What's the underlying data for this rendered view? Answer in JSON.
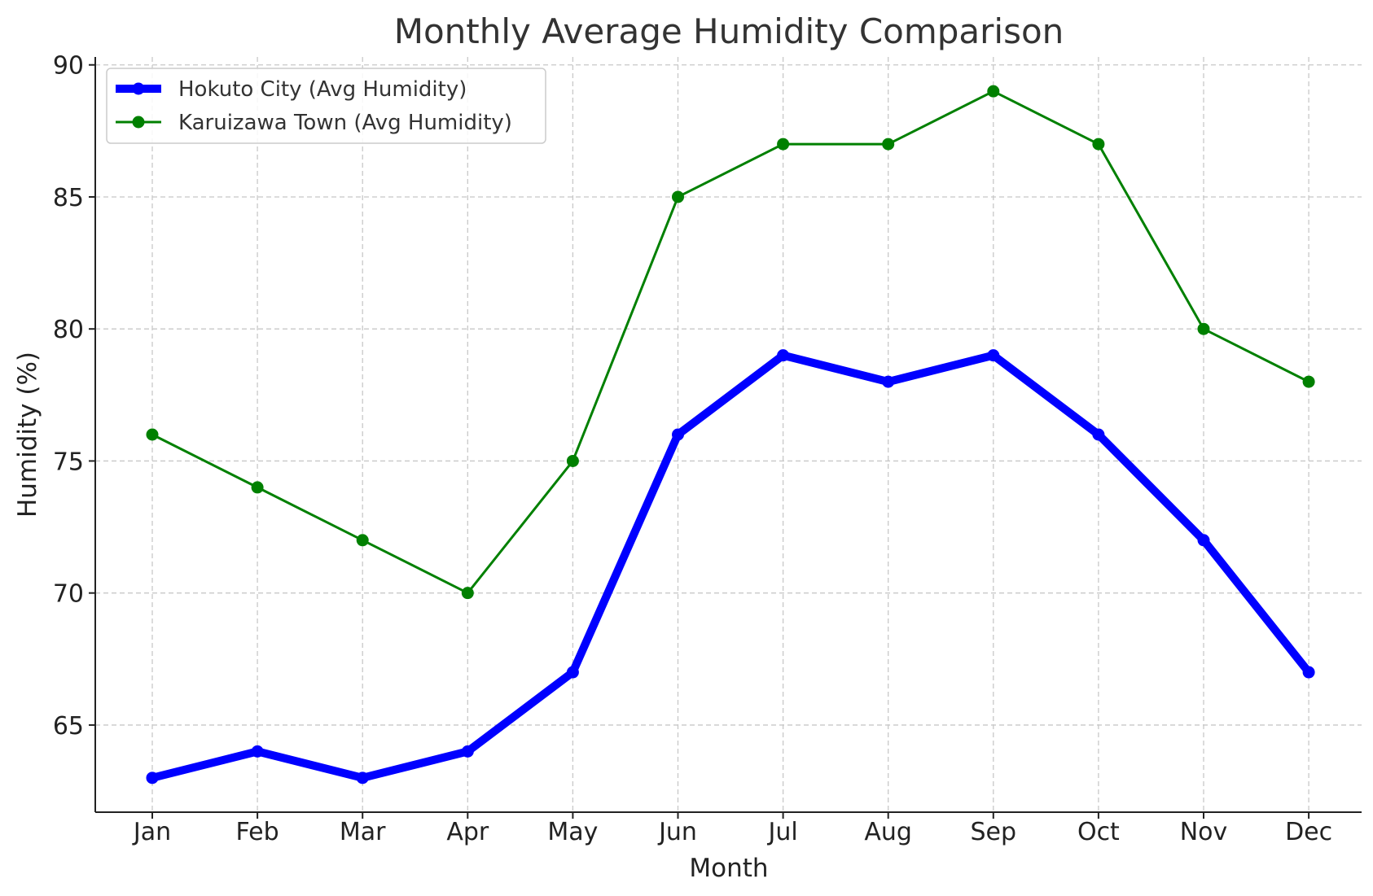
{
  "chart_data": {
    "type": "line",
    "title": "Monthly Average Humidity Comparison",
    "xlabel": "Month",
    "ylabel": "Humidity (%)",
    "categories": [
      "Jan",
      "Feb",
      "Mar",
      "Apr",
      "May",
      "Jun",
      "Jul",
      "Aug",
      "Sep",
      "Oct",
      "Nov",
      "Dec"
    ],
    "ylim": [
      61.7,
      90.3
    ],
    "yticks": [
      65,
      70,
      75,
      80,
      85,
      90
    ],
    "grid": true,
    "legend_position": "top-left",
    "series": [
      {
        "name": "Hokuto City (Avg Humidity)",
        "color": "#0000ff",
        "values": [
          63,
          64,
          63,
          64,
          67,
          76,
          79,
          78,
          79,
          76,
          72,
          67
        ]
      },
      {
        "name": "Karuizawa Town (Avg Humidity)",
        "color": "#008000",
        "values": [
          76,
          74,
          72,
          70,
          75,
          85,
          87,
          87,
          89,
          87,
          80,
          78
        ]
      }
    ]
  }
}
